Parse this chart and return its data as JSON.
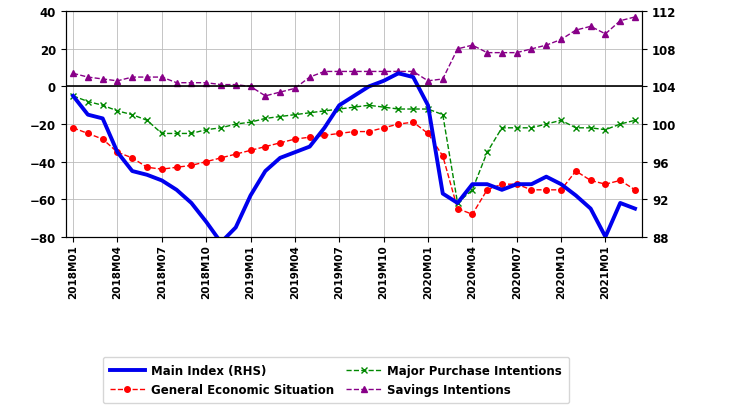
{
  "x_labels": [
    "2018M01",
    "2018M04",
    "2018M07",
    "2018M10",
    "2019M01",
    "2019M04",
    "2019M07",
    "2019M10",
    "2020M01",
    "2020M04",
    "2020M07",
    "2020M10",
    "2021M01"
  ],
  "ylim_left": [
    -80,
    40
  ],
  "ylim_right": [
    88,
    112
  ],
  "yticks_left": [
    -80,
    -60,
    -40,
    -20,
    0,
    20,
    40
  ],
  "yticks_right": [
    88,
    92,
    96,
    100,
    104,
    108,
    112
  ],
  "main_color": "#0000EE",
  "general_color": "#FF0000",
  "major_color": "#008800",
  "savings_color": "#880088",
  "background_color": "#FFFFFF",
  "grid_color": "#BBBBBB",
  "legend_labels": [
    "Main Index (RHS)",
    "General Economic Situation",
    "Major Purchase Intentions",
    "Savings Intentions"
  ],
  "main_index": [
    -5,
    -15,
    -17,
    -35,
    -45,
    -47,
    -50,
    -55,
    -62,
    -72,
    -83,
    -75,
    -58,
    -45,
    -38,
    -35,
    -32,
    -22,
    -10,
    -5,
    0,
    3,
    7,
    5,
    -10,
    -57,
    -62,
    -52,
    -52,
    -55,
    -52,
    -52,
    -48,
    -52,
    -58,
    -65,
    -80,
    -62,
    -65
  ],
  "general_economic": [
    -22,
    -25,
    -28,
    -35,
    -38,
    -43,
    -44,
    -43,
    -42,
    -40,
    -38,
    -36,
    -34,
    -32,
    -30,
    -28,
    -27,
    -26,
    -25,
    -24,
    -24,
    -22,
    -20,
    -19,
    -25,
    -37,
    -65,
    -68,
    -55,
    -52,
    -52,
    -55,
    -55,
    -55,
    -45,
    -50,
    -52,
    -50,
    -55
  ],
  "major_purchase": [
    -5,
    -8,
    -10,
    -13,
    -15,
    -18,
    -25,
    -25,
    -25,
    -23,
    -22,
    -20,
    -19,
    -17,
    -16,
    -15,
    -14,
    -13,
    -12,
    -11,
    -10,
    -11,
    -12,
    -12,
    -12,
    -15,
    -62,
    -55,
    -35,
    -22,
    -22,
    -22,
    -20,
    -18,
    -22,
    -22,
    -23,
    -20,
    -18
  ],
  "savings": [
    7,
    5,
    4,
    3,
    5,
    5,
    5,
    2,
    2,
    2,
    1,
    1,
    0,
    -5,
    -3,
    -1,
    5,
    8,
    8,
    8,
    8,
    8,
    8,
    8,
    3,
    4,
    20,
    22,
    18,
    18,
    18,
    20,
    22,
    25,
    30,
    32,
    28,
    35,
    37
  ],
  "n_months": 39
}
